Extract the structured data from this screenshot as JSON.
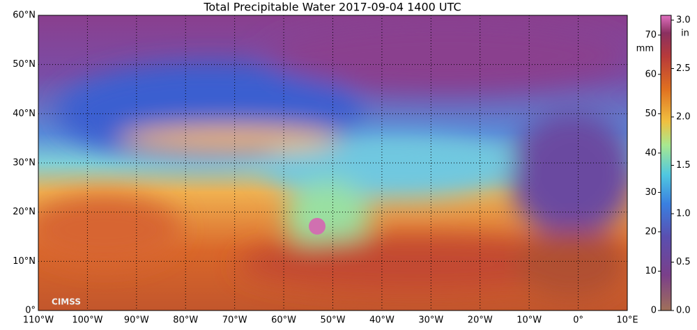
{
  "title": "Total Precipitable Water  2017-09-04 1400 UTC",
  "map": {
    "lonlim": [
      -110,
      10
    ],
    "latlim": [
      0,
      60
    ],
    "lonticks": [
      {
        "value": -110,
        "label": "110°W"
      },
      {
        "value": -100,
        "label": "100°W"
      },
      {
        "value": -90,
        "label": "90°W"
      },
      {
        "value": -80,
        "label": "80°W"
      },
      {
        "value": -70,
        "label": "70°W"
      },
      {
        "value": -60,
        "label": "60°W"
      },
      {
        "value": -50,
        "label": "50°W"
      },
      {
        "value": -40,
        "label": "40°W"
      },
      {
        "value": -30,
        "label": "30°W"
      },
      {
        "value": -20,
        "label": "20°W"
      },
      {
        "value": -10,
        "label": "10°W"
      },
      {
        "value": 0,
        "label": "0°"
      },
      {
        "value": 10,
        "label": "10°E"
      }
    ],
    "latticks": [
      {
        "value": 0,
        "label": "0°"
      },
      {
        "value": 10,
        "label": "10°N"
      },
      {
        "value": 20,
        "label": "20°N"
      },
      {
        "value": 30,
        "label": "30°N"
      },
      {
        "value": 40,
        "label": "40°N"
      },
      {
        "value": 50,
        "label": "50°N"
      },
      {
        "value": 60,
        "label": "60°N"
      }
    ],
    "logo": "CIMSS"
  },
  "colorbar": {
    "mm_unit": "mm",
    "in_unit": "in",
    "mm_lim": [
      0,
      75
    ],
    "mmticks": [
      0,
      10,
      20,
      30,
      40,
      50,
      60,
      70
    ],
    "in_lim": [
      0,
      3.05
    ],
    "inticks": [
      {
        "value": 0,
        "label": "0.0"
      },
      {
        "value": 0.5,
        "label": "0.5"
      },
      {
        "value": 1,
        "label": "1.0"
      },
      {
        "value": 1.5,
        "label": "1.5"
      },
      {
        "value": 2,
        "label": "2.0"
      },
      {
        "value": 2.5,
        "label": "2.5"
      },
      {
        "value": 3,
        "label": "3.0"
      }
    ]
  }
}
